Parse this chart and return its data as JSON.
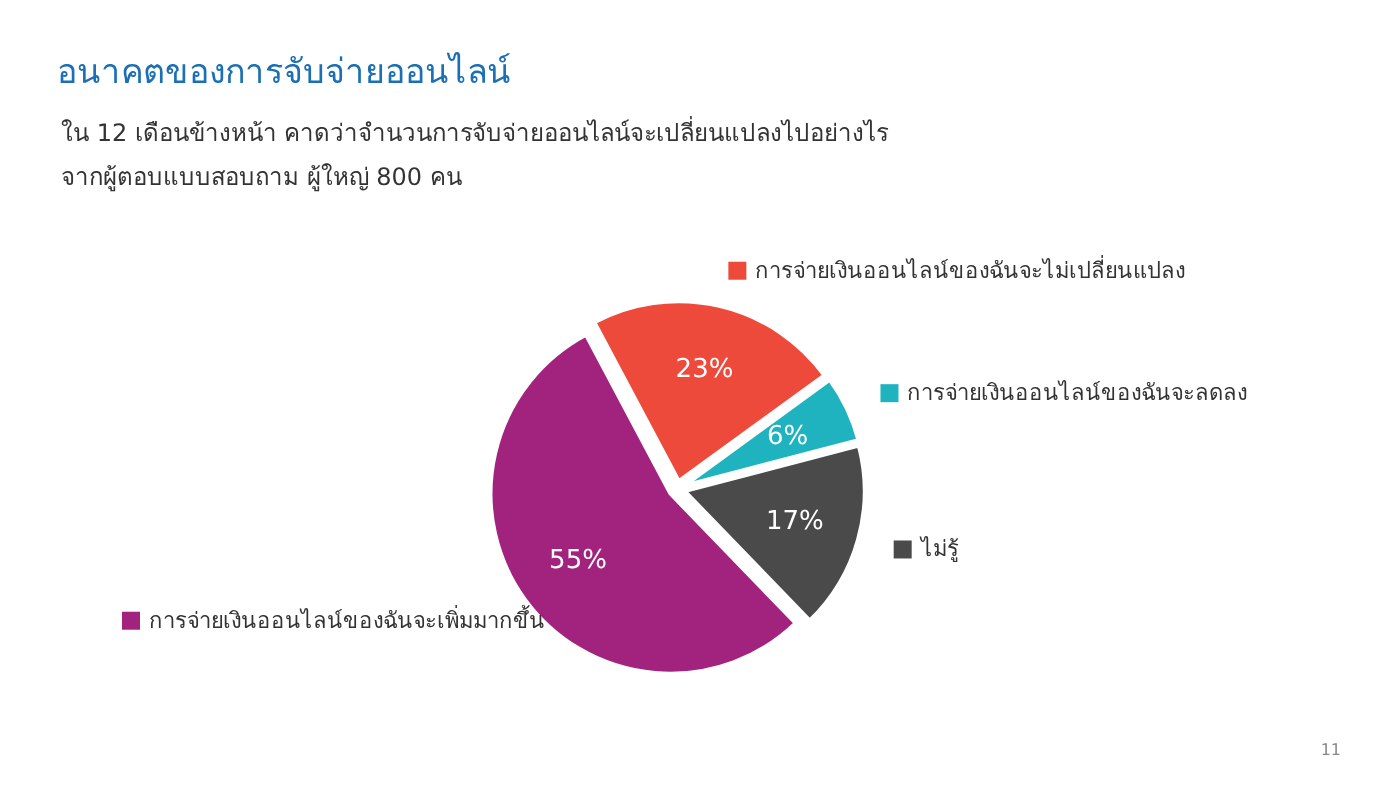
{
  "chart_data": {
    "type": "pie",
    "title": "อนาคตของการจับจ่ายออนไลน์",
    "subtitle": "ใน 12 เดือนข้างหน้า คาดว่าจำนวนการจับจ่ายออนไลน์จะเปลี่ยนแปลงไปอย่างไร\nจากผู้ตอบแบบสอบถาม ผู้ใหญ่ 800 คน",
    "categories": [
      "การจ่ายเงินออนไลน์ของฉันจะไม่เปลี่ยนแปลง",
      "การจ่ายเงินออนไลน์ของฉันจะลดลง",
      "ไม่รู้",
      "การจ่ายเงินออนไลน์ของฉันจะเพิ่มมากขึ้น"
    ],
    "values": [
      23,
      6,
      17,
      55
    ],
    "colors": [
      "#ee4a3c",
      "#1fb3c0",
      "#4a4a4a",
      "#a2237e"
    ],
    "data_labels": true,
    "legend": "right",
    "value_labels": [
      "23%",
      "6%",
      "17%",
      "55%"
    ],
    "annotations": [
      "11"
    ]
  }
}
